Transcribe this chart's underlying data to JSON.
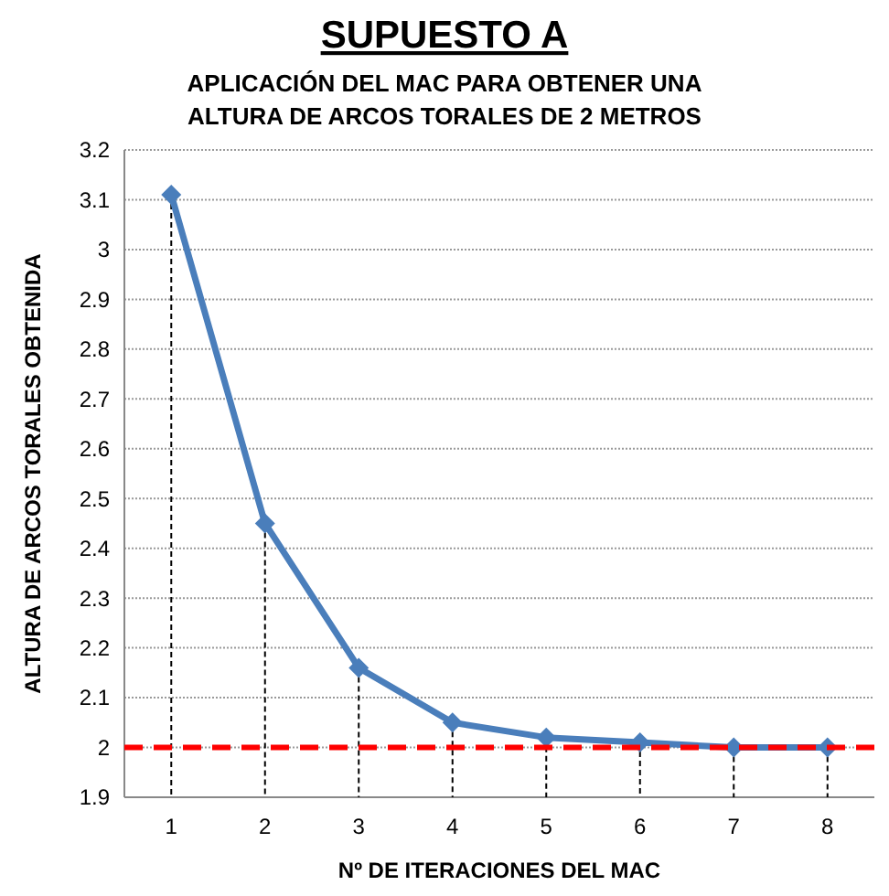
{
  "chart_data": {
    "type": "line",
    "title": "SUPUESTO A",
    "subtitle": "APLICACIÓN DEL MAC PARA OBTENER UNA\nALTURA DE ARCOS TORALES DE 2 METROS",
    "xlabel": "Nº DE ITERACIONES DEL MAC",
    "ylabel": "ALTURA DE ARCOS TORALES OBTENIDA",
    "categories": [
      "1",
      "2",
      "3",
      "4",
      "5",
      "6",
      "7",
      "8"
    ],
    "series": [
      {
        "color": "#4a7ebb",
        "values": [
          3.11,
          2.45,
          2.16,
          2.05,
          2.02,
          2.01,
          2.0,
          2.0
        ],
        "errors": [
          [
            1.9,
            3.11
          ],
          [
            1.9,
            2.45
          ],
          [
            1.9,
            2.16
          ],
          [
            1.9,
            2.05
          ],
          [
            1.9,
            2.02
          ],
          [
            1.9,
            2.01
          ],
          [
            1.9,
            2.0
          ],
          [
            1.9,
            2.0
          ]
        ]
      }
    ],
    "ylim": [
      1.9,
      3.2
    ],
    "yticks": [
      1.9,
      2,
      2.1,
      2.2,
      2.3,
      2.4,
      2.5,
      2.6,
      2.7,
      2.8,
      2.9,
      3,
      3.1,
      3.2
    ],
    "grid": "y",
    "marker": "diamond",
    "line_style": "solid",
    "ref_lines": [
      {
        "axis": "y",
        "value": 2,
        "color": "#ff0000",
        "line_style": "dashed"
      }
    ]
  }
}
